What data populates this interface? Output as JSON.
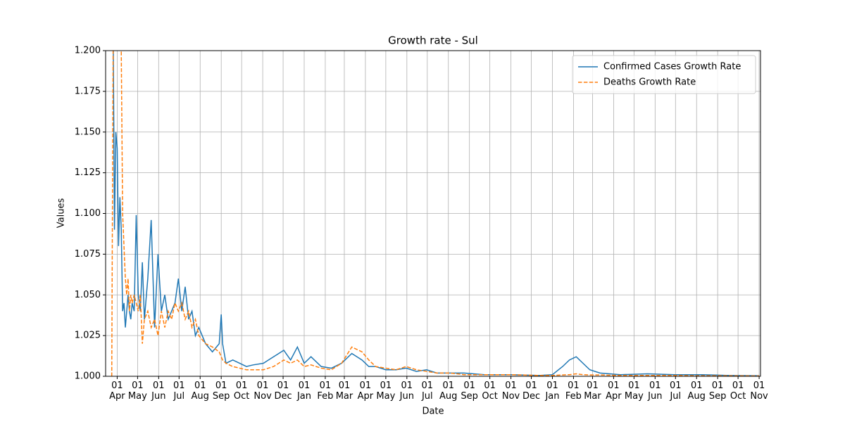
{
  "chart_data": {
    "type": "line",
    "title": "Growth rate - Sul",
    "x_label": "Date",
    "y_label": "Values",
    "x": [
      -8,
      -6,
      -4,
      -2,
      0,
      2,
      4,
      6,
      8,
      10,
      12,
      14,
      16,
      18,
      20,
      22,
      25,
      28,
      31,
      34,
      37,
      40,
      45,
      50,
      55,
      60,
      65,
      70,
      75,
      80,
      85,
      90,
      95,
      100,
      105,
      110,
      115,
      120,
      130,
      140,
      150,
      153,
      155,
      160,
      170,
      180,
      190,
      200,
      215,
      230,
      245,
      255,
      265,
      275,
      285,
      300,
      315,
      330,
      345,
      360,
      370,
      380,
      395,
      410,
      425,
      440,
      455,
      470,
      490,
      510,
      540,
      580,
      620,
      640,
      655,
      665,
      675,
      685,
      695,
      710,
      740,
      780,
      820,
      860,
      900,
      944
    ],
    "series": [
      {
        "name": "Confirmed Cases Growth Rate",
        "color": "#1f77b4",
        "dash": "solid",
        "values": [
          1.21,
          1.22,
          1.09,
          1.15,
          1.14,
          1.08,
          1.11,
          1.09,
          1.04,
          1.045,
          1.03,
          1.04,
          1.05,
          1.04,
          1.035,
          1.045,
          1.04,
          1.099,
          1.05,
          1.04,
          1.07,
          1.035,
          1.06,
          1.096,
          1.03,
          1.075,
          1.04,
          1.05,
          1.035,
          1.04,
          1.045,
          1.06,
          1.04,
          1.055,
          1.035,
          1.04,
          1.025,
          1.03,
          1.02,
          1.015,
          1.02,
          1.038,
          1.02,
          1.008,
          1.01,
          1.008,
          1.006,
          1.007,
          1.008,
          1.012,
          1.016,
          1.01,
          1.018,
          1.008,
          1.012,
          1.006,
          1.005,
          1.008,
          1.014,
          1.01,
          1.006,
          1.006,
          1.004,
          1.004,
          1.005,
          1.003,
          1.004,
          1.002,
          1.002,
          1.002,
          1.001,
          1.001,
          1.0005,
          1.001,
          1.006,
          1.01,
          1.012,
          1.008,
          1.004,
          1.002,
          1.001,
          1.0015,
          1.001,
          1.001,
          1.0005,
          1.0003
        ]
      },
      {
        "name": "Deaths Growth Rate",
        "color": "#ff7f0e",
        "dash": "dashed",
        "values": [
          1.0,
          1.2,
          1.25,
          1.2,
          1.3,
          1.2,
          1.25,
          1.2,
          1.1,
          1.08,
          1.06,
          1.05,
          1.06,
          1.04,
          1.05,
          1.045,
          1.05,
          1.045,
          1.04,
          1.05,
          1.02,
          1.035,
          1.04,
          1.03,
          1.035,
          1.025,
          1.04,
          1.03,
          1.04,
          1.035,
          1.045,
          1.04,
          1.045,
          1.035,
          1.04,
          1.03,
          1.035,
          1.025,
          1.02,
          1.018,
          1.015,
          1.012,
          1.01,
          1.008,
          1.006,
          1.005,
          1.004,
          1.004,
          1.004,
          1.006,
          1.01,
          1.008,
          1.01,
          1.006,
          1.007,
          1.005,
          1.004,
          1.008,
          1.018,
          1.015,
          1.01,
          1.006,
          1.005,
          1.004,
          1.006,
          1.004,
          1.003,
          1.002,
          1.002,
          1.001,
          1.001,
          1.001,
          1.0005,
          1.0005,
          1.0008,
          1.001,
          1.0015,
          1.001,
          1.0008,
          1.0008,
          1.0005,
          1.0005,
          1.0005,
          1.0003,
          1.0003,
          1.0002
        ]
      }
    ],
    "xlim": [
      -17,
      946
    ],
    "xticks": [
      {
        "value": 0,
        "label": "01\nApr"
      },
      {
        "value": 30,
        "label": "01\nMay"
      },
      {
        "value": 61,
        "label": "01\nJun"
      },
      {
        "value": 91,
        "label": "01\nJul"
      },
      {
        "value": 122,
        "label": "01\nAug"
      },
      {
        "value": 153,
        "label": "01\nSep"
      },
      {
        "value": 183,
        "label": "01\nOct"
      },
      {
        "value": 214,
        "label": "01\nNov"
      },
      {
        "value": 244,
        "label": "01\nDec"
      },
      {
        "value": 275,
        "label": "01\nJan"
      },
      {
        "value": 306,
        "label": "01\nFeb"
      },
      {
        "value": 334,
        "label": "01\nMar"
      },
      {
        "value": 365,
        "label": "01\nApr"
      },
      {
        "value": 395,
        "label": "01\nMay"
      },
      {
        "value": 426,
        "label": "01\nJun"
      },
      {
        "value": 456,
        "label": "01\nJul"
      },
      {
        "value": 487,
        "label": "01\nAug"
      },
      {
        "value": 518,
        "label": "01\nSep"
      },
      {
        "value": 548,
        "label": "01\nOct"
      },
      {
        "value": 579,
        "label": "01\nNov"
      },
      {
        "value": 609,
        "label": "01\nDec"
      },
      {
        "value": 640,
        "label": "01\nJan"
      },
      {
        "value": 671,
        "label": "01\nFeb"
      },
      {
        "value": 699,
        "label": "01\nMar"
      },
      {
        "value": 730,
        "label": "01\nApr"
      },
      {
        "value": 760,
        "label": "01\nMay"
      },
      {
        "value": 791,
        "label": "01\nJun"
      },
      {
        "value": 821,
        "label": "01\nJul"
      },
      {
        "value": 852,
        "label": "01\nAug"
      },
      {
        "value": 883,
        "label": "01\nSep"
      },
      {
        "value": 913,
        "label": "01\nOct"
      },
      {
        "value": 944,
        "label": "01\nNov"
      }
    ],
    "ylim": [
      1.0,
      1.2
    ],
    "yticks": [
      {
        "value": 1.0,
        "label": "1.000"
      },
      {
        "value": 1.025,
        "label": "1.025"
      },
      {
        "value": 1.05,
        "label": "1.050"
      },
      {
        "value": 1.075,
        "label": "1.075"
      },
      {
        "value": 1.1,
        "label": "1.100"
      },
      {
        "value": 1.125,
        "label": "1.125"
      },
      {
        "value": 1.15,
        "label": "1.150"
      },
      {
        "value": 1.175,
        "label": "1.175"
      },
      {
        "value": 1.2,
        "label": "1.200"
      }
    ],
    "grid": true,
    "legend": "upper right"
  }
}
